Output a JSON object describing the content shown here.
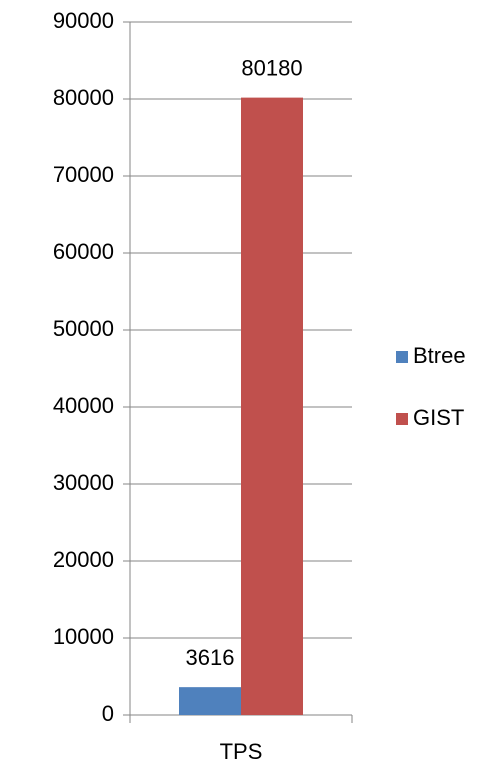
{
  "chart_data": {
    "type": "bar",
    "categories": [
      "TPS"
    ],
    "series": [
      {
        "name": "Btree",
        "color": "#4f81bd",
        "values": [
          3616
        ]
      },
      {
        "name": "GIST",
        "color": "#c0504d",
        "values": [
          80180
        ]
      }
    ],
    "ylim": [
      0,
      90000
    ],
    "yticks": [
      0,
      10000,
      20000,
      30000,
      40000,
      50000,
      60000,
      70000,
      80000,
      90000
    ],
    "grid": true,
    "legend": "right"
  }
}
